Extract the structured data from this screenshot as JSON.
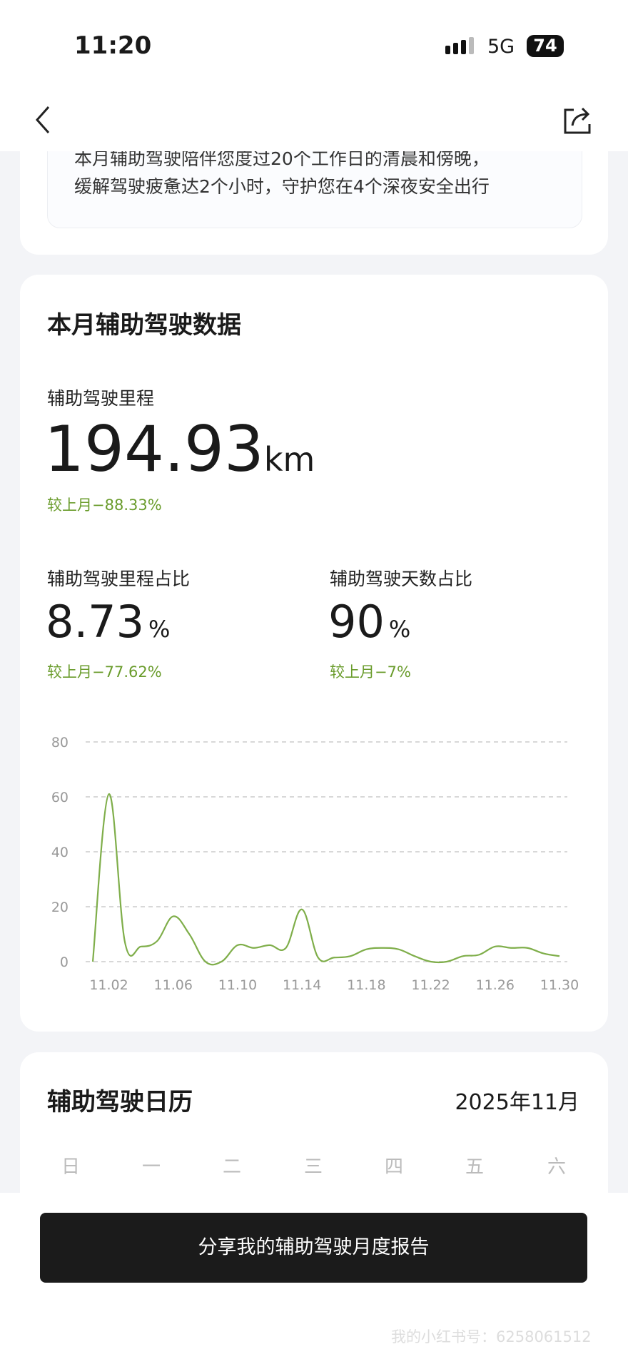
{
  "status_bar": {
    "time": "11:20",
    "network": "5G",
    "battery": "74"
  },
  "summary": {
    "lines": [
      "本月辅助驾驶陪伴您度过20个工作日的清晨和傍晚，",
      "缓解驾驶疲惫达2个小时，守护您在4个深夜安全出行"
    ]
  },
  "data_card": {
    "title": "本月辅助驾驶数据",
    "mileage": {
      "label": "辅助驾驶里程",
      "value": "194.93",
      "unit": "km",
      "change": "较上月−88.33%"
    },
    "mileage_ratio": {
      "label": "辅助驾驶里程占比",
      "value": "8.73",
      "unit": "%",
      "change": "较上月−77.62%"
    },
    "days_ratio": {
      "label": "辅助驾驶天数占比",
      "value": "90",
      "unit": "%",
      "change": "较上月−7%"
    }
  },
  "chart_data": {
    "type": "line",
    "categories": [
      null,
      "11.02",
      null,
      null,
      null,
      "11.06",
      null,
      null,
      null,
      "11.10",
      null,
      null,
      null,
      "11.14",
      null,
      null,
      null,
      "11.18",
      null,
      null,
      null,
      "11.22",
      null,
      null,
      null,
      "11.26",
      null,
      null,
      null,
      "11.30"
    ],
    "values": [
      0,
      61,
      7,
      5.5,
      7.5,
      16.5,
      10,
      0,
      0,
      6,
      5,
      6,
      5,
      19,
      1.5,
      1.5,
      2,
      4.5,
      5,
      4.5,
      2,
      0,
      0,
      2,
      2.5,
      5.5,
      5,
      5,
      3,
      2
    ],
    "color": "#7fae4a",
    "ylim": [
      0,
      80
    ],
    "yticks": [
      0,
      20,
      40,
      60,
      80
    ],
    "grid": true
  },
  "calendar": {
    "title": "辅助驾驶日历",
    "month": "2025年11月",
    "weekdays": [
      "日",
      "一",
      "二",
      "三",
      "四",
      "五",
      "六"
    ]
  },
  "share_button": "分享我的辅助驾驶月度报告",
  "watermark": "我的小红书号：6258061512"
}
